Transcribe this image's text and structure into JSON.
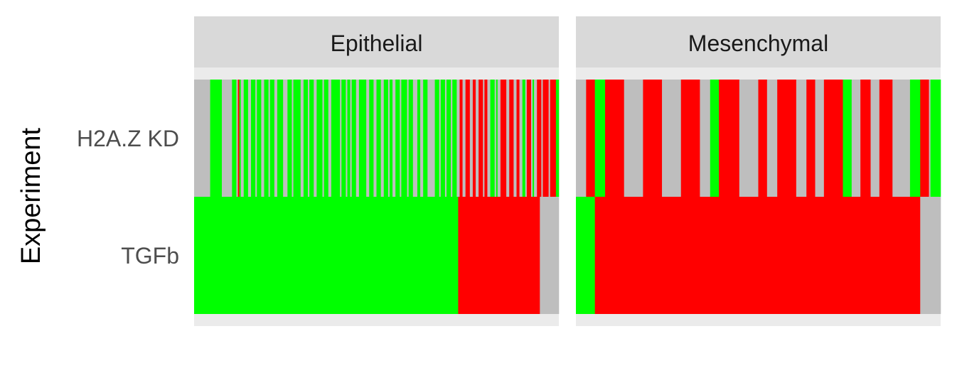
{
  "chart_data": {
    "type": "heatmap",
    "ylabel": "Experiment",
    "xlabel": "",
    "rows": [
      "H2A.Z KD",
      "TGFb"
    ],
    "colors": {
      "green": "#00ff00",
      "red": "#ff0000",
      "grey": "#bebebe"
    },
    "panels": [
      {
        "name": "Epithelial",
        "n_columns": 500,
        "rows": {
          "H2A.Z KD": [
            {
              "end": 22,
              "color": "grey"
            },
            {
              "end": 38,
              "color": "green"
            },
            {
              "end": 52,
              "color": "grey"
            },
            {
              "end": 58,
              "color": "green"
            },
            {
              "end": 60,
              "color": "grey"
            },
            {
              "end": 62,
              "color": "red"
            },
            {
              "end": 64,
              "color": "green"
            },
            {
              "end": 68,
              "color": "grey"
            },
            {
              "end": 74,
              "color": "green"
            },
            {
              "end": 78,
              "color": "grey"
            },
            {
              "end": 84,
              "color": "green"
            },
            {
              "end": 86,
              "color": "grey"
            },
            {
              "end": 92,
              "color": "green"
            },
            {
              "end": 96,
              "color": "grey"
            },
            {
              "end": 102,
              "color": "green"
            },
            {
              "end": 104,
              "color": "grey"
            },
            {
              "end": 110,
              "color": "green"
            },
            {
              "end": 114,
              "color": "grey"
            },
            {
              "end": 122,
              "color": "green"
            },
            {
              "end": 128,
              "color": "grey"
            },
            {
              "end": 134,
              "color": "green"
            },
            {
              "end": 136,
              "color": "grey"
            },
            {
              "end": 146,
              "color": "green"
            },
            {
              "end": 150,
              "color": "grey"
            },
            {
              "end": 156,
              "color": "green"
            },
            {
              "end": 158,
              "color": "grey"
            },
            {
              "end": 164,
              "color": "green"
            },
            {
              "end": 168,
              "color": "grey"
            },
            {
              "end": 176,
              "color": "green"
            },
            {
              "end": 178,
              "color": "grey"
            },
            {
              "end": 184,
              "color": "green"
            },
            {
              "end": 188,
              "color": "grey"
            },
            {
              "end": 200,
              "color": "green"
            },
            {
              "end": 202,
              "color": "grey"
            },
            {
              "end": 208,
              "color": "green"
            },
            {
              "end": 210,
              "color": "grey"
            },
            {
              "end": 214,
              "color": "green"
            },
            {
              "end": 216,
              "color": "grey"
            },
            {
              "end": 222,
              "color": "green"
            },
            {
              "end": 226,
              "color": "grey"
            },
            {
              "end": 236,
              "color": "green"
            },
            {
              "end": 240,
              "color": "grey"
            },
            {
              "end": 246,
              "color": "green"
            },
            {
              "end": 250,
              "color": "grey"
            },
            {
              "end": 256,
              "color": "green"
            },
            {
              "end": 260,
              "color": "grey"
            },
            {
              "end": 266,
              "color": "green"
            },
            {
              "end": 268,
              "color": "grey"
            },
            {
              "end": 272,
              "color": "green"
            },
            {
              "end": 276,
              "color": "grey"
            },
            {
              "end": 282,
              "color": "green"
            },
            {
              "end": 284,
              "color": "grey"
            },
            {
              "end": 292,
              "color": "green"
            },
            {
              "end": 294,
              "color": "grey"
            },
            {
              "end": 300,
              "color": "green"
            },
            {
              "end": 306,
              "color": "grey"
            },
            {
              "end": 310,
              "color": "green"
            },
            {
              "end": 314,
              "color": "grey"
            },
            {
              "end": 320,
              "color": "green"
            },
            {
              "end": 330,
              "color": "grey"
            },
            {
              "end": 336,
              "color": "green"
            },
            {
              "end": 338,
              "color": "grey"
            },
            {
              "end": 344,
              "color": "green"
            },
            {
              "end": 346,
              "color": "grey"
            },
            {
              "end": 352,
              "color": "green"
            },
            {
              "end": 354,
              "color": "grey"
            },
            {
              "end": 360,
              "color": "green"
            },
            {
              "end": 364,
              "color": "grey"
            },
            {
              "end": 368,
              "color": "red"
            },
            {
              "end": 372,
              "color": "grey"
            },
            {
              "end": 378,
              "color": "red"
            },
            {
              "end": 382,
              "color": "grey"
            },
            {
              "end": 386,
              "color": "red"
            },
            {
              "end": 390,
              "color": "grey"
            },
            {
              "end": 396,
              "color": "red"
            },
            {
              "end": 398,
              "color": "grey"
            },
            {
              "end": 402,
              "color": "red"
            },
            {
              "end": 406,
              "color": "grey"
            },
            {
              "end": 412,
              "color": "green"
            },
            {
              "end": 414,
              "color": "grey"
            },
            {
              "end": 416,
              "color": "green"
            },
            {
              "end": 420,
              "color": "grey"
            },
            {
              "end": 428,
              "color": "red"
            },
            {
              "end": 432,
              "color": "grey"
            },
            {
              "end": 438,
              "color": "red"
            },
            {
              "end": 442,
              "color": "grey"
            },
            {
              "end": 446,
              "color": "red"
            },
            {
              "end": 450,
              "color": "grey"
            },
            {
              "end": 454,
              "color": "green"
            },
            {
              "end": 456,
              "color": "grey"
            },
            {
              "end": 462,
              "color": "red"
            },
            {
              "end": 464,
              "color": "grey"
            },
            {
              "end": 466,
              "color": "green"
            },
            {
              "end": 470,
              "color": "grey"
            },
            {
              "end": 476,
              "color": "red"
            },
            {
              "end": 478,
              "color": "grey"
            },
            {
              "end": 486,
              "color": "red"
            },
            {
              "end": 488,
              "color": "grey"
            },
            {
              "end": 496,
              "color": "red"
            },
            {
              "end": 500,
              "color": "green"
            }
          ],
          "TGFb": [
            {
              "end": 362,
              "color": "green"
            },
            {
              "end": 474,
              "color": "red"
            },
            {
              "end": 500,
              "color": "grey"
            }
          ]
        }
      },
      {
        "name": "Mesenchymal",
        "n_columns": 500,
        "rows": {
          "H2A.Z KD": [
            {
              "end": 14,
              "color": "grey"
            },
            {
              "end": 26,
              "color": "red"
            },
            {
              "end": 40,
              "color": "green"
            },
            {
              "end": 66,
              "color": "red"
            },
            {
              "end": 92,
              "color": "grey"
            },
            {
              "end": 118,
              "color": "red"
            },
            {
              "end": 144,
              "color": "grey"
            },
            {
              "end": 170,
              "color": "red"
            },
            {
              "end": 184,
              "color": "grey"
            },
            {
              "end": 196,
              "color": "green"
            },
            {
              "end": 224,
              "color": "red"
            },
            {
              "end": 250,
              "color": "grey"
            },
            {
              "end": 262,
              "color": "red"
            },
            {
              "end": 276,
              "color": "grey"
            },
            {
              "end": 302,
              "color": "red"
            },
            {
              "end": 316,
              "color": "grey"
            },
            {
              "end": 328,
              "color": "red"
            },
            {
              "end": 340,
              "color": "grey"
            },
            {
              "end": 366,
              "color": "red"
            },
            {
              "end": 378,
              "color": "green"
            },
            {
              "end": 390,
              "color": "grey"
            },
            {
              "end": 404,
              "color": "red"
            },
            {
              "end": 416,
              "color": "grey"
            },
            {
              "end": 434,
              "color": "red"
            },
            {
              "end": 458,
              "color": "grey"
            },
            {
              "end": 472,
              "color": "green"
            },
            {
              "end": 484,
              "color": "red"
            },
            {
              "end": 486,
              "color": "grey"
            },
            {
              "end": 500,
              "color": "green"
            }
          ],
          "TGFb": [
            {
              "end": 26,
              "color": "green"
            },
            {
              "end": 472,
              "color": "red"
            },
            {
              "end": 500,
              "color": "grey"
            }
          ]
        }
      }
    ]
  }
}
